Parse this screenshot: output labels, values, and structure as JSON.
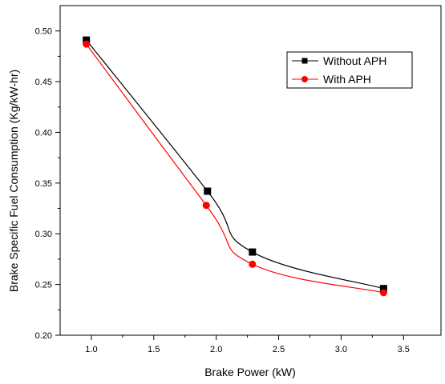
{
  "chart_data": {
    "type": "line",
    "xlabel": "Brake Power (kW)",
    "ylabel": "Brake Specific Fuel Consumption (Kg/kW-hr)",
    "xlim": [
      0.75,
      3.8
    ],
    "ylim": [
      0.2,
      0.525
    ],
    "xticks": [
      1.0,
      1.5,
      2.0,
      2.5,
      3.0,
      3.5
    ],
    "xtick_labels": [
      "1.0",
      "1.5",
      "2.0",
      "2.5",
      "3.0",
      "3.5"
    ],
    "yticks": [
      0.2,
      0.25,
      0.3,
      0.35,
      0.4,
      0.45,
      0.5
    ],
    "ytick_labels": [
      "0.20",
      "0.25",
      "0.30",
      "0.35",
      "0.40",
      "0.45",
      "0.50"
    ],
    "grid": false,
    "legend_position": "top-right",
    "series": [
      {
        "name": "Without APH",
        "color": "#000000",
        "marker": "square",
        "x": [
          0.96,
          1.93,
          2.29,
          3.34
        ],
        "y": [
          0.491,
          0.342,
          0.282,
          0.246
        ]
      },
      {
        "name": "With APH",
        "color": "#ff0000",
        "marker": "circle",
        "x": [
          0.96,
          1.92,
          2.29,
          3.34
        ],
        "y": [
          0.487,
          0.328,
          0.27,
          0.242
        ]
      }
    ]
  }
}
